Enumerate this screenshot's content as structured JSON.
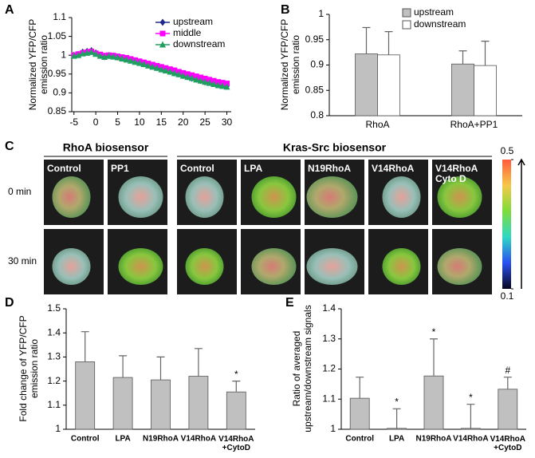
{
  "chart_data": [
    {
      "type": "line",
      "panel": "A",
      "ylabel": "Normalized YFP/CFP\nemission ratio",
      "x": [
        -5,
        -4,
        -3,
        -2,
        -1,
        0,
        1,
        2,
        3,
        4,
        5,
        6,
        7,
        8,
        9,
        10,
        11,
        12,
        13,
        14,
        15,
        16,
        17,
        18,
        19,
        20,
        21,
        22,
        23,
        24,
        25,
        26,
        27,
        28,
        29,
        30
      ],
      "series": [
        {
          "name": "upstream",
          "color": "#1f2a8a",
          "marker": "diamond",
          "values": [
            1.0,
            1.002,
            1.008,
            1.01,
            1.012,
            1.006,
            1.0,
            0.996,
            0.999,
            0.998,
            0.995,
            0.992,
            0.99,
            0.987,
            0.984,
            0.981,
            0.977,
            0.974,
            0.971,
            0.967,
            0.964,
            0.961,
            0.957,
            0.953,
            0.95,
            0.946,
            0.943,
            0.939,
            0.936,
            0.933,
            0.929,
            0.928,
            0.926,
            0.923,
            0.92,
            0.918
          ]
        },
        {
          "name": "middle",
          "color": "#ff00ff",
          "marker": "square",
          "values": [
            1.0,
            1.003,
            1.006,
            1.008,
            1.01,
            1.005,
            1.002,
            0.999,
            1.0,
            0.999,
            0.997,
            0.995,
            0.993,
            0.99,
            0.987,
            0.984,
            0.981,
            0.978,
            0.975,
            0.972,
            0.969,
            0.966,
            0.963,
            0.96,
            0.956,
            0.953,
            0.95,
            0.947,
            0.944,
            0.941,
            0.938,
            0.935,
            0.932,
            0.929,
            0.927,
            0.925
          ]
        },
        {
          "name": "downstream",
          "color": "#20a060",
          "marker": "triangle",
          "values": [
            0.998,
            1.0,
            1.004,
            1.006,
            1.008,
            1.003,
            0.998,
            0.995,
            0.998,
            0.996,
            0.994,
            0.991,
            0.988,
            0.985,
            0.982,
            0.979,
            0.976,
            0.972,
            0.969,
            0.966,
            0.962,
            0.959,
            0.956,
            0.952,
            0.949,
            0.945,
            0.942,
            0.939,
            0.935,
            0.932,
            0.929,
            0.926,
            0.923,
            0.92,
            0.918,
            0.916
          ]
        }
      ],
      "xlim": [
        -5.5,
        31
      ],
      "xticks": [
        -5,
        0,
        5,
        10,
        15,
        20,
        25,
        30
      ],
      "ylim": [
        0.85,
        1.1
      ],
      "yticks": [
        0.85,
        0.9,
        0.95,
        1,
        1.05,
        1.1
      ]
    },
    {
      "type": "bar",
      "panel": "B",
      "ylabel": "Normalized YFP/CFP\nemission ratio",
      "categories": [
        "RhoA",
        "RhoA+PP1"
      ],
      "series": [
        {
          "name": "upstream",
          "color": "#c0c0c0",
          "values": [
            0.922,
            0.902
          ],
          "errors": [
            0.052,
            0.026
          ]
        },
        {
          "name": "downstream",
          "color": "#ffffff",
          "values": [
            0.92,
            0.899
          ],
          "errors": [
            0.046,
            0.048
          ]
        }
      ],
      "ylim": [
        0.8,
        1
      ],
      "yticks": [
        0.8,
        0.85,
        0.9,
        0.95,
        1
      ]
    },
    {
      "type": "image-grid",
      "panel": "C",
      "groups": [
        {
          "title": "RhoA  biosensor",
          "columns": [
            "Control",
            "PP1"
          ]
        },
        {
          "title": "Kras-Src biosensor",
          "columns": [
            "Control",
            "LPA",
            "N19RhoA",
            "V14RhoA",
            "V14RhoA\nCyto D"
          ]
        }
      ],
      "rows": [
        "0 min",
        "30 min"
      ],
      "colorbar": {
        "lim": [
          0.1,
          0.5
        ],
        "ticks": [
          0.1,
          0.5
        ]
      }
    },
    {
      "type": "bar",
      "panel": "D",
      "ylabel": "Fold change of YFP/CFP\nemission ratio",
      "categories": [
        "Control",
        "LPA",
        "N19RhoA",
        "V14RhoA",
        "V14RhoA\n+CytoD"
      ],
      "series": [
        {
          "color": "#c0c0c0",
          "values": [
            1.28,
            1.215,
            1.205,
            1.22,
            1.155
          ],
          "errors": [
            0.125,
            0.09,
            0.095,
            0.115,
            0.045
          ]
        }
      ],
      "annotations": [
        {
          "category": "V14RhoA\n+CytoD",
          "text": "*"
        }
      ],
      "ylim": [
        1,
        1.5
      ],
      "yticks": [
        1,
        1.1,
        1.2,
        1.3,
        1.4,
        1.5
      ]
    },
    {
      "type": "bar",
      "panel": "E",
      "ylabel": "Ratio of averaged\nupstream/downstream signals",
      "categories": [
        "Control",
        "LPA",
        "N19RhoA",
        "V14RhoA",
        "V14RhoA\n+CytoD"
      ],
      "series": [
        {
          "color": "#c0c0c0",
          "values": [
            1.103,
            1.003,
            1.177,
            1.003,
            1.133
          ],
          "errors": [
            0.07,
            0.065,
            0.123,
            0.08,
            0.04
          ]
        }
      ],
      "annotations": [
        {
          "category": "LPA",
          "text": "*"
        },
        {
          "category": "N19RhoA",
          "text": "*"
        },
        {
          "category": "V14RhoA",
          "text": "*"
        },
        {
          "category": "V14RhoA\n+CytoD",
          "text": "#"
        }
      ],
      "ylim": [
        1,
        1.4
      ],
      "yticks": [
        1,
        1.1,
        1.2,
        1.3,
        1.4
      ]
    }
  ]
}
